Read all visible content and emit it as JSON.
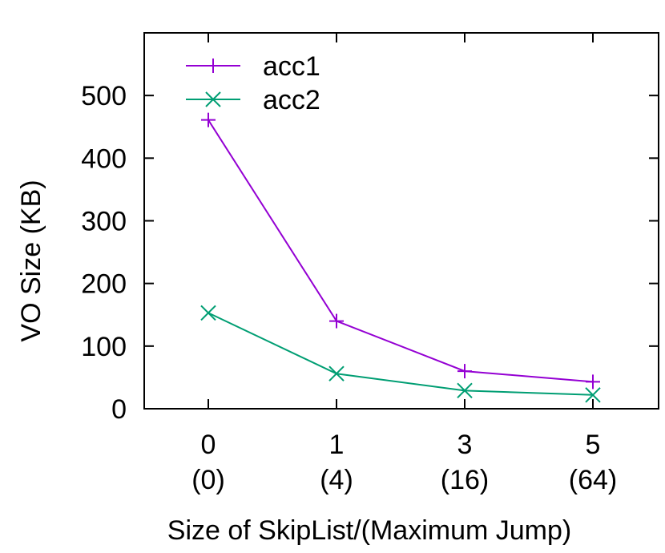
{
  "chart_data": {
    "type": "line",
    "title": "",
    "xlabel": "Size of SkipList/(Maximum Jump)",
    "ylabel": "VO Size (KB)",
    "categories": [
      {
        "top": "0",
        "bottom": "(0)"
      },
      {
        "top": "1",
        "bottom": "(4)"
      },
      {
        "top": "3",
        "bottom": "(16)"
      },
      {
        "top": "5",
        "bottom": "(64)"
      }
    ],
    "ylim": [
      0,
      600
    ],
    "yticks": [
      0,
      100,
      200,
      300,
      400,
      500
    ],
    "grid": false,
    "legend_position": "top-left",
    "series": [
      {
        "name": "acc1",
        "color": "#9400d3",
        "marker": "plus",
        "values": [
          461,
          140,
          60,
          43
        ]
      },
      {
        "name": "acc2",
        "color": "#009e73",
        "marker": "cross",
        "values": [
          153,
          56,
          29,
          22
        ]
      }
    ]
  }
}
